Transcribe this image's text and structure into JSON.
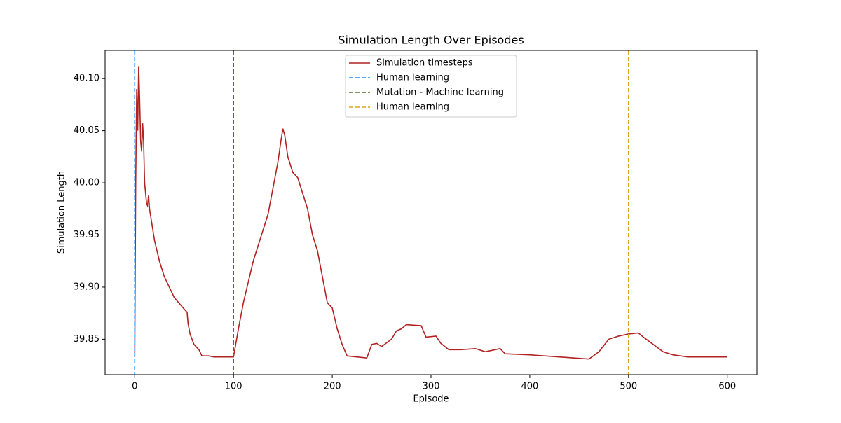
{
  "chart_data": {
    "type": "line",
    "title": "Simulation Length Over Episodes",
    "xlabel": "Episode",
    "ylabel": "Simulation Length",
    "x": [
      0,
      1,
      2,
      3,
      4,
      5,
      6,
      7,
      8,
      9,
      10,
      12,
      13,
      14,
      15,
      20,
      25,
      30,
      40,
      50,
      53,
      54,
      56,
      60,
      65,
      68,
      75,
      80,
      100,
      105,
      110,
      115,
      120,
      125,
      130,
      135,
      140,
      145,
      148,
      150,
      152,
      155,
      160,
      165,
      170,
      175,
      180,
      185,
      190,
      195,
      200,
      205,
      210,
      215,
      225,
      235,
      240,
      245,
      250,
      260,
      265,
      270,
      275,
      290,
      295,
      305,
      310,
      318,
      330,
      345,
      355,
      370,
      375,
      400,
      430,
      460,
      470,
      480,
      490,
      500,
      510,
      515,
      525,
      535,
      545,
      560,
      600
    ],
    "series": [
      {
        "name": "Simulation timesteps",
        "color": "#b22222",
        "values": [
          39.833,
          40.0,
          40.09,
          40.05,
          40.112,
          40.08,
          40.04,
          40.03,
          40.057,
          40.04,
          40.0,
          39.98,
          39.978,
          39.988,
          39.975,
          39.945,
          39.925,
          39.91,
          39.89,
          39.879,
          39.876,
          39.865,
          39.855,
          39.845,
          39.84,
          39.834,
          39.834,
          39.833,
          39.833,
          39.86,
          39.885,
          39.905,
          39.925,
          39.94,
          39.955,
          39.97,
          39.995,
          40.02,
          40.04,
          40.052,
          40.045,
          40.025,
          40.01,
          40.005,
          39.99,
          39.975,
          39.95,
          39.935,
          39.91,
          39.885,
          39.88,
          39.86,
          39.845,
          39.834,
          39.833,
          39.832,
          39.845,
          39.846,
          39.843,
          39.85,
          39.858,
          39.86,
          39.864,
          39.863,
          39.852,
          39.853,
          39.846,
          39.84,
          39.84,
          39.841,
          39.838,
          39.841,
          39.836,
          39.835,
          39.833,
          39.831,
          39.838,
          39.85,
          39.853,
          39.855,
          39.856,
          39.852,
          39.845,
          39.838,
          39.835,
          39.833,
          39.833
        ]
      }
    ],
    "vlines": [
      {
        "name": "Human learning",
        "color": "#1e90ff",
        "x": 0
      },
      {
        "name": "Mutation - Machine learning",
        "color": "#556b2f",
        "x": 100
      },
      {
        "name": "Human learning",
        "color": "#daa520",
        "x": 500
      }
    ],
    "xlim": [
      -30,
      630
    ],
    "ylim": [
      39.816,
      40.127
    ],
    "xticks": [
      0,
      100,
      200,
      300,
      400,
      500,
      600
    ],
    "yticks": [
      39.85,
      {
        "value": 39.9,
        "label": "39.90"
      },
      39.95,
      {
        "value": 40.0,
        "label": "40.00"
      },
      40.05,
      {
        "value": 40.1,
        "label": "40.10"
      }
    ],
    "legend": "upper center"
  }
}
